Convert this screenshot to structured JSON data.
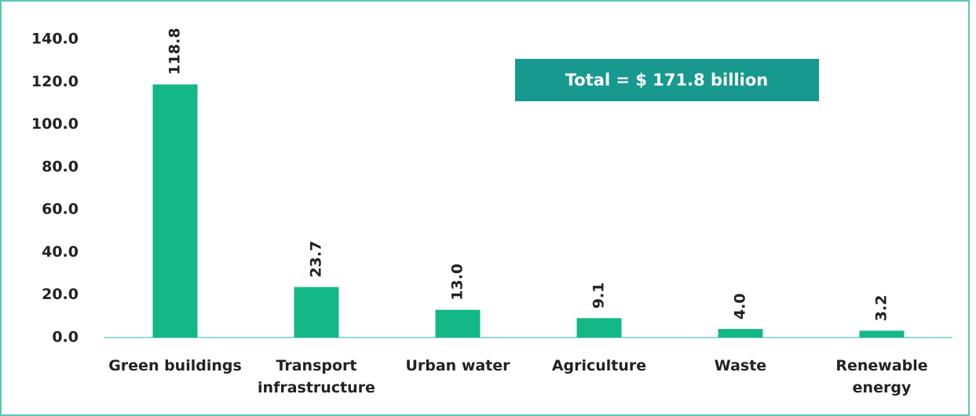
{
  "chart_data": {
    "type": "bar",
    "categories": [
      "Green buildings",
      "Transport infrastructure",
      "Urban water",
      "Agriculture",
      "Waste",
      "Renewable energy"
    ],
    "values": [
      118.8,
      23.7,
      13.0,
      9.1,
      4.0,
      3.2
    ],
    "value_labels": [
      "118.8",
      "23.7",
      "13.0",
      "9.1",
      "4.0",
      "3.2"
    ],
    "color": "#13b886",
    "ylim": [
      0,
      140
    ],
    "yticks": [
      {
        "value": 0,
        "label": "0.0"
      },
      {
        "value": 20,
        "label": "20.0"
      },
      {
        "value": 40,
        "label": "40.0"
      },
      {
        "value": 60,
        "label": "60.0"
      },
      {
        "value": 80,
        "label": "80.0"
      },
      {
        "value": 100,
        "label": "100.0"
      },
      {
        "value": 120,
        "label": "120.0"
      },
      {
        "value": 140,
        "label": "140.0"
      }
    ],
    "annotation": "Total = $ 171.8 billion"
  }
}
